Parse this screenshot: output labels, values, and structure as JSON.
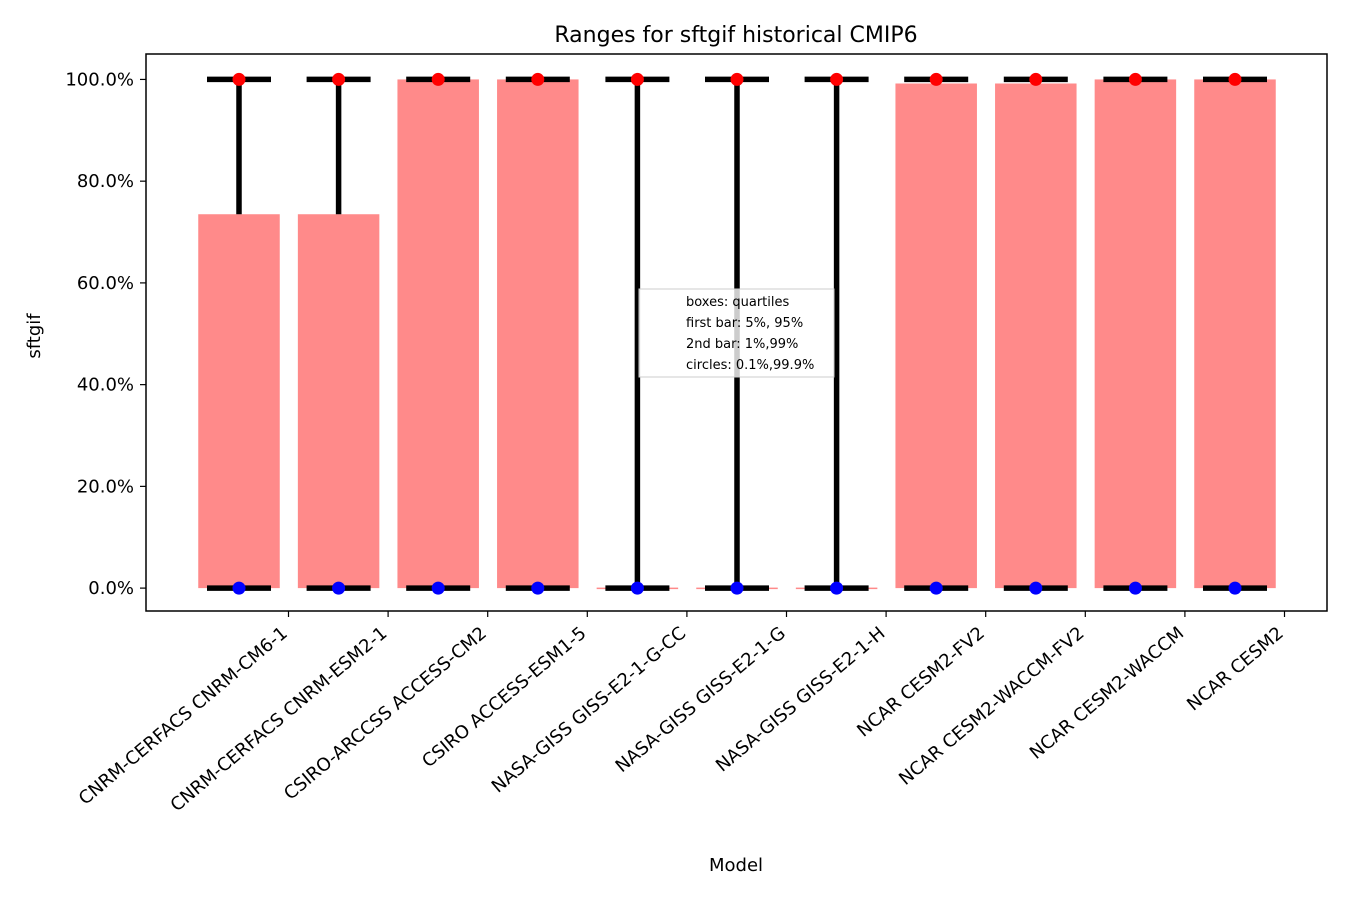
{
  "chart_data": {
    "type": "bar",
    "title": "Ranges for sftgif historical CMIP6",
    "xlabel": "Model",
    "ylabel": "sftgif",
    "ylim": [
      -4.5,
      105
    ],
    "yticks": [
      0,
      20,
      40,
      60,
      80,
      100
    ],
    "ytick_labels": [
      "0.0%",
      "20.0%",
      "40.0%",
      "60.0%",
      "80.0%",
      "100.0%"
    ],
    "grid": false,
    "categories": [
      "CNRM-CERFACS CNRM-CM6-1",
      "CNRM-CERFACS CNRM-ESM2-1",
      "CSIRO-ARCCSS ACCESS-CM2",
      "CSIRO ACCESS-ESM1-5",
      "NASA-GISS GISS-E2-1-G-CC",
      "NASA-GISS GISS-E2-1-G",
      "NASA-GISS GISS-E2-1-H",
      "NCAR CESM2-FV2",
      "NCAR CESM2-WACCM-FV2",
      "NCAR CESM2-WACCM",
      "NCAR CESM2"
    ],
    "boxes": {
      "description": "quartiles",
      "q1": [
        0,
        0,
        0,
        0,
        0,
        0,
        0,
        0,
        0,
        0,
        0
      ],
      "q3": [
        73.5,
        73.5,
        100,
        100,
        0.1,
        0.1,
        0.1,
        99.2,
        99.2,
        100,
        100
      ]
    },
    "bar_5_95": {
      "low": [
        0,
        0,
        0,
        0,
        0,
        0,
        0,
        0,
        0,
        0,
        0
      ],
      "high": [
        100,
        100,
        100,
        100,
        100,
        100,
        100,
        100,
        100,
        100,
        100
      ]
    },
    "bar_1_99": {
      "low": [
        0,
        0,
        0,
        0,
        0,
        0,
        0,
        0,
        0,
        0,
        0
      ],
      "high": [
        100,
        100,
        100,
        100,
        100,
        100,
        100,
        100,
        100,
        100,
        100
      ]
    },
    "circles": {
      "p0_1": [
        0,
        0,
        0,
        0,
        0,
        0,
        0,
        0,
        0,
        0,
        0
      ],
      "p99_9": [
        100,
        100,
        100,
        100,
        100,
        100,
        100,
        100,
        100,
        100,
        100
      ]
    },
    "legend": {
      "placement": "center",
      "lines": [
        "boxes: quartiles",
        "first bar: 5%, 95%",
        "2nd bar: 1%,99%",
        "circles: 0.1%,99.9%"
      ]
    },
    "colors": {
      "box": "#ff8a8a",
      "whisker": "#000000",
      "low_circle": "#0000ff",
      "high_circle": "#ff0000"
    }
  }
}
